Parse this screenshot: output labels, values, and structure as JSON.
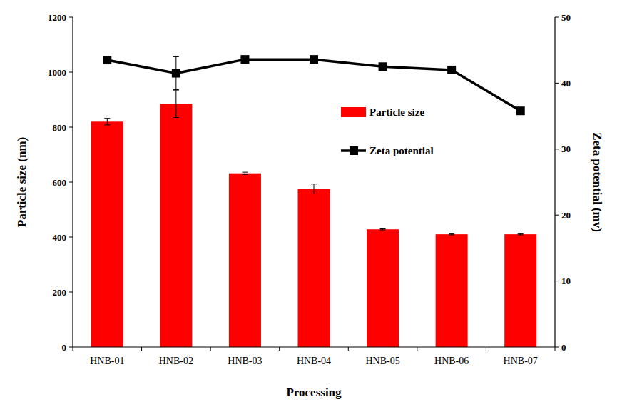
{
  "chart_data": {
    "type": "bar",
    "x_label": "Processing",
    "y_label": "Particle size (nm)",
    "y2_label": "Zeta potential (mv)",
    "categories": [
      "HNB-01",
      "HNB-02",
      "HNB-03",
      "HNB-04",
      "HNB-05",
      "HNB-06",
      "HNB-07"
    ],
    "series": [
      {
        "name": "Particle size",
        "type": "bar",
        "color": "#ff0000",
        "values": [
          820,
          885,
          632,
          575,
          428,
          410,
          410
        ],
        "errors": [
          12,
          50,
          4,
          18,
          2,
          2,
          2
        ]
      },
      {
        "name": "Zeta potential",
        "type": "line",
        "axis": "y2",
        "color": "#000000",
        "marker": "square",
        "values": [
          43.5,
          41.5,
          43.6,
          43.6,
          42.5,
          42,
          35.8
        ],
        "errors": [
          0.5,
          2.5,
          0.3,
          0.3,
          0.5,
          0.2,
          0.2
        ]
      }
    ],
    "ylim": [
      0,
      1200
    ],
    "yticks": [
      0,
      200,
      400,
      600,
      800,
      1000,
      1200
    ],
    "y2lim": [
      0,
      50
    ],
    "y2ticks": [
      0,
      10,
      20,
      30,
      40,
      50
    ],
    "grid": false,
    "legend": "upper right"
  }
}
